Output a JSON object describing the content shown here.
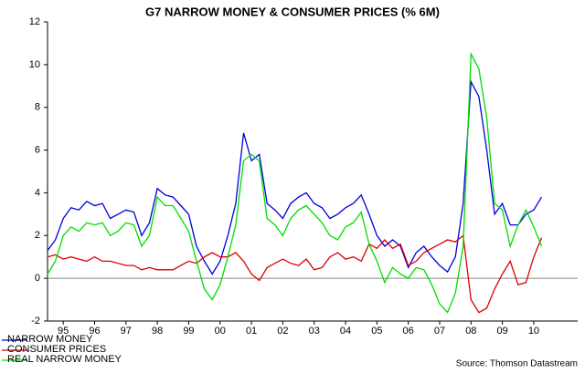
{
  "chart_data": {
    "type": "line",
    "title": "G7 NARROW MONEY & CONSUMER PRICES (% 6M)",
    "source": "Source: Thomson Datastream",
    "x": [
      1995,
      1995.25,
      1995.5,
      1995.75,
      1996,
      1996.25,
      1996.5,
      1996.75,
      1997,
      1997.25,
      1997.5,
      1997.75,
      1998,
      1998.25,
      1998.5,
      1998.75,
      1999,
      1999.25,
      1999.5,
      1999.75,
      2000,
      2000.25,
      2000.5,
      2000.75,
      2001,
      2001.25,
      2001.5,
      2001.75,
      2002,
      2002.25,
      2002.5,
      2002.75,
      2003,
      2003.25,
      2003.5,
      2003.75,
      2004,
      2004.25,
      2004.5,
      2004.75,
      2005,
      2005.25,
      2005.5,
      2005.75,
      2006,
      2006.25,
      2006.5,
      2006.75,
      2007,
      2007.25,
      2007.5,
      2007.75,
      2008,
      2008.25,
      2008.5,
      2008.75,
      2009,
      2009.25,
      2009.5,
      2009.75,
      2010,
      2010.25,
      2010.5,
      2010.75
    ],
    "series": [
      {
        "name": "NARROW MONEY",
        "color": "#0000dd",
        "values": [
          1.3,
          1.8,
          2.8,
          3.3,
          3.2,
          3.6,
          3.4,
          3.5,
          2.8,
          3.0,
          3.2,
          3.1,
          2.0,
          2.6,
          4.2,
          3.9,
          3.8,
          3.4,
          3.0,
          1.5,
          0.8,
          0.2,
          0.8,
          2.0,
          3.5,
          6.8,
          5.5,
          5.8,
          3.5,
          3.2,
          2.8,
          3.5,
          3.8,
          4.0,
          3.5,
          3.3,
          2.8,
          3.0,
          3.3,
          3.5,
          3.9,
          3.0,
          2.0,
          1.5,
          1.8,
          1.5,
          0.5,
          1.2,
          1.5,
          1.0,
          0.6,
          0.3,
          1.0,
          3.5,
          9.2,
          8.5,
          6.0,
          3.0,
          3.5,
          2.5,
          2.5,
          3.0,
          3.2,
          3.8
        ]
      },
      {
        "name": "CONSUMER PRICES",
        "color": "#dd0000",
        "values": [
          1.0,
          1.1,
          0.9,
          1.0,
          0.9,
          0.8,
          1.0,
          0.8,
          0.8,
          0.7,
          0.6,
          0.6,
          0.4,
          0.5,
          0.4,
          0.4,
          0.4,
          0.6,
          0.8,
          0.7,
          1.0,
          1.2,
          1.0,
          1.0,
          1.2,
          0.8,
          0.2,
          -0.1,
          0.5,
          0.7,
          0.9,
          0.7,
          0.6,
          0.9,
          0.4,
          0.5,
          1.0,
          1.2,
          0.9,
          1.0,
          0.8,
          1.6,
          1.4,
          1.8,
          1.4,
          1.6,
          0.6,
          0.8,
          1.2,
          1.4,
          1.6,
          1.8,
          1.7,
          2.0,
          -1.0,
          -1.6,
          -1.4,
          -0.5,
          0.2,
          0.8,
          -0.3,
          -0.2,
          1.0,
          1.9
        ]
      },
      {
        "name": "REAL NARROW MONEY",
        "color": "#00dd00",
        "values": [
          0.2,
          0.8,
          2.0,
          2.4,
          2.2,
          2.6,
          2.5,
          2.6,
          2.0,
          2.2,
          2.6,
          2.5,
          1.5,
          2.0,
          3.8,
          3.4,
          3.4,
          2.8,
          2.2,
          0.8,
          -0.5,
          -1.0,
          -0.3,
          1.0,
          2.5,
          5.5,
          5.8,
          5.5,
          2.8,
          2.5,
          2.0,
          2.8,
          3.2,
          3.4,
          3.0,
          2.6,
          2.0,
          1.8,
          2.4,
          2.6,
          3.1,
          1.6,
          0.8,
          -0.2,
          0.5,
          0.2,
          0.0,
          0.5,
          0.4,
          -0.3,
          -1.2,
          -1.6,
          -0.7,
          1.5,
          10.5,
          9.8,
          7.5,
          3.5,
          3.2,
          1.5,
          2.5,
          3.2,
          2.4,
          1.5
        ]
      }
    ],
    "xlim": [
      1995,
      2011.9
    ],
    "xticks": [
      {
        "value": 1995.5,
        "label": "95"
      },
      {
        "value": 1996.5,
        "label": "96"
      },
      {
        "value": 1997.5,
        "label": "97"
      },
      {
        "value": 1998.5,
        "label": "98"
      },
      {
        "value": 1999.5,
        "label": "99"
      },
      {
        "value": 2000.5,
        "label": "00"
      },
      {
        "value": 2001.5,
        "label": "01"
      },
      {
        "value": 2002.5,
        "label": "02"
      },
      {
        "value": 2003.5,
        "label": "03"
      },
      {
        "value": 2004.5,
        "label": "04"
      },
      {
        "value": 2005.5,
        "label": "05"
      },
      {
        "value": 2006.5,
        "label": "06"
      },
      {
        "value": 2007.5,
        "label": "07"
      },
      {
        "value": 2008.5,
        "label": "08"
      },
      {
        "value": 2009.5,
        "label": "09"
      },
      {
        "value": 2010.5,
        "label": "10"
      }
    ],
    "ylim": [
      -2,
      12
    ],
    "yticks": [
      -2,
      0,
      2,
      4,
      6,
      8,
      10,
      12
    ],
    "reference_line": 0,
    "grid": false,
    "legend": "lower left"
  }
}
